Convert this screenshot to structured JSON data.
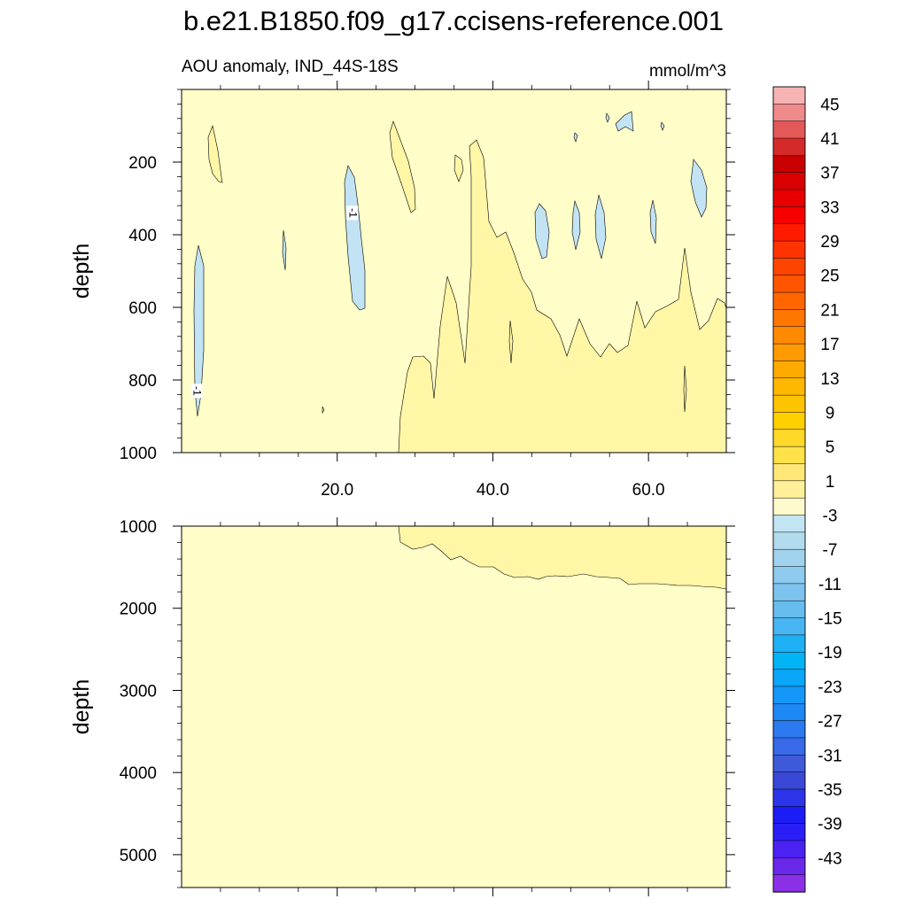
{
  "chart_data": {
    "type": "heatmap",
    "title": "b.e21.B1850.f09_g17.ccisens-reference.001",
    "subtitle_left": "AOU anomaly, IND_44S-18S",
    "subtitle_right": "mmol/m^3",
    "units": "mmol/m^3",
    "panels": [
      {
        "name": "upper",
        "ylabel": "depth",
        "ylim": [
          1000,
          0
        ],
        "yticks": [
          200,
          400,
          600,
          800,
          1000
        ],
        "ytick_labels": [
          "200",
          "400",
          "600",
          "800",
          "1000"
        ],
        "xlim": [
          0,
          70
        ],
        "xticks": [
          20,
          40,
          60
        ],
        "xtick_labels": [
          "20.0",
          "40.0",
          "60.0"
        ],
        "contour_labels": [
          {
            "text": "-1",
            "x": 22,
            "y": 340
          },
          {
            "text": "-1",
            "x": 2,
            "y": 830
          }
        ]
      },
      {
        "name": "lower",
        "ylabel": "depth",
        "ylim": [
          5400,
          1000
        ],
        "yticks": [
          1000,
          2000,
          3000,
          4000,
          5000
        ],
        "ytick_labels": [
          "1000",
          "2000",
          "3000",
          "4000",
          "5000"
        ],
        "xlim": [
          0,
          70
        ],
        "xticks": [
          20,
          40,
          60
        ],
        "xtick_labels": [],
        "contour_labels": []
      }
    ],
    "colorbar": {
      "orientation": "vertical",
      "placement": "right",
      "levels": [
        -45,
        -43,
        -41,
        -39,
        -37,
        -35,
        -33,
        -31,
        -29,
        -27,
        -25,
        -23,
        -21,
        -19,
        -17,
        -15,
        -13,
        -11,
        -9,
        -7,
        -5,
        -3,
        -1,
        1,
        3,
        5,
        7,
        9,
        11,
        13,
        15,
        17,
        19,
        21,
        23,
        25,
        27,
        29,
        31,
        33,
        35,
        37,
        39,
        41,
        43,
        45
      ],
      "labeled_levels": [
        "45",
        "41",
        "37",
        "33",
        "29",
        "25",
        "21",
        "17",
        "13",
        "9",
        "5",
        "1",
        "-3",
        "-7",
        "-11",
        "-15",
        "-19",
        "-23",
        "-27",
        "-31",
        "-35",
        "-39",
        "-43"
      ],
      "colors_top_to_bottom": [
        "#f7b4b4",
        "#ef8a8a",
        "#e45858",
        "#d62a2a",
        "#c80000",
        "#d80000",
        "#e80000",
        "#f70000",
        "#ff1a00",
        "#ff3300",
        "#ff4400",
        "#ff5500",
        "#ff6600",
        "#ff7700",
        "#ff8a00",
        "#ff9a00",
        "#ffaa00",
        "#ffb800",
        "#ffc400",
        "#ffd000",
        "#ffd92a",
        "#ffe24a",
        "#ffe877",
        "#fff099",
        "#fffacc",
        "#c3e4f2",
        "#b2dcee",
        "#a2d3ee",
        "#8fcbee",
        "#7cc3ee",
        "#66bdee",
        "#47b5f2",
        "#1eb0f5",
        "#00b4f5",
        "#0aa6f8",
        "#1497f8",
        "#1e88f5",
        "#2b7af0",
        "#3769e8",
        "#3e5ad8",
        "#3a48d8",
        "#2d34e8",
        "#1c1cf6",
        "#2a1ef6",
        "#4a22f2",
        "#6a28ea",
        "#8a30e6"
      ]
    },
    "fill_colors": {
      "background_0_to_1": "#fffdc8",
      "level_1_to_3": "#fff7a0",
      "level_3_to_5": "#fff6a6",
      "negative_-3_to_-1": "#c2e3f3",
      "contour_line": "#000000"
    },
    "grid": false,
    "legend": "right"
  }
}
